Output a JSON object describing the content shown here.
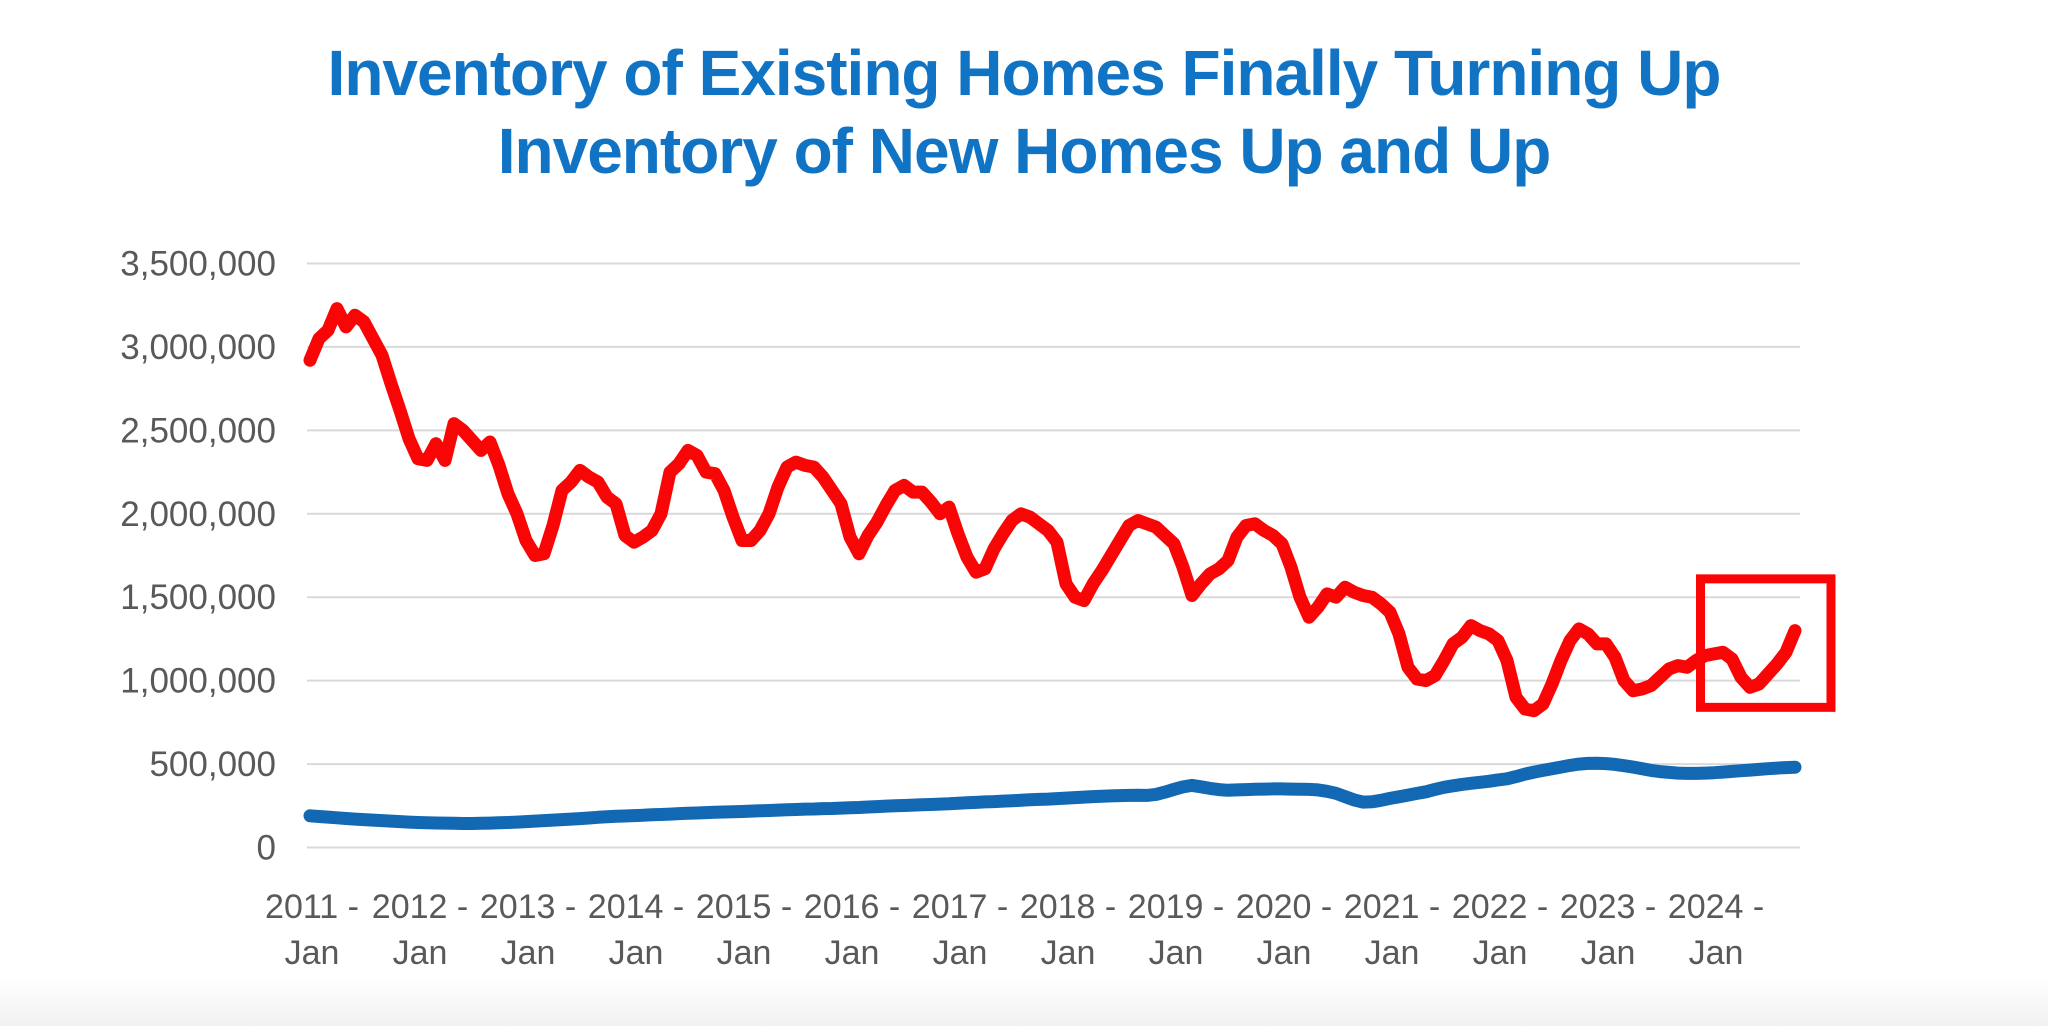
{
  "title": {
    "line1": "Inventory of Existing Homes Finally Turning Up",
    "line2": "Inventory of New Homes Up and Up",
    "color": "#1173c4"
  },
  "chart_data": {
    "type": "line",
    "title": "Inventory of Existing Homes Finally Turning Up / Inventory of New Homes Up and Up",
    "x_axis": {
      "start": "2011-01",
      "frequency": "monthly",
      "points": 166,
      "tick_years": [
        "2011",
        "2012",
        "2013",
        "2014",
        "2015",
        "2016",
        "2017",
        "2018",
        "2019",
        "2020",
        "2021",
        "2022",
        "2023",
        "2024"
      ],
      "tick_month_label": "Jan",
      "year_suffix": " -"
    },
    "y_axis": {
      "min": 0,
      "max": 3500000,
      "tick_step": 500000,
      "tick_labels": [
        "0",
        "500,000",
        "1,000,000",
        "1,500,000",
        "2,000,000",
        "2,500,000",
        "3,000,000",
        "3,500,000"
      ],
      "label_color": "#595959"
    },
    "grid": {
      "show": true,
      "color": "#d9d9d9",
      "horizontal_only": true
    },
    "legend": "none",
    "series": [
      {
        "name": "existing-homes-inventory",
        "color": "#f90505",
        "stroke_width": 13,
        "unit": "homes",
        "values": [
          2920000,
          3050000,
          3100000,
          3230000,
          3120000,
          3190000,
          3150000,
          3050000,
          2950000,
          2780000,
          2620000,
          2450000,
          2330000,
          2320000,
          2420000,
          2320000,
          2540000,
          2500000,
          2440000,
          2380000,
          2430000,
          2290000,
          2120000,
          2000000,
          1840000,
          1750000,
          1760000,
          1930000,
          2140000,
          2190000,
          2260000,
          2220000,
          2190000,
          2100000,
          2060000,
          1870000,
          1830000,
          1860000,
          1900000,
          2000000,
          2250000,
          2300000,
          2380000,
          2350000,
          2250000,
          2240000,
          2140000,
          1980000,
          1840000,
          1840000,
          1900000,
          2000000,
          2160000,
          2280000,
          2310000,
          2290000,
          2280000,
          2220000,
          2140000,
          2060000,
          1860000,
          1760000,
          1870000,
          1950000,
          2050000,
          2140000,
          2170000,
          2130000,
          2130000,
          2070000,
          2000000,
          2040000,
          1880000,
          1740000,
          1650000,
          1670000,
          1790000,
          1880000,
          1960000,
          2000000,
          1980000,
          1940000,
          1900000,
          1830000,
          1580000,
          1500000,
          1480000,
          1580000,
          1660000,
          1750000,
          1840000,
          1930000,
          1960000,
          1940000,
          1920000,
          1870000,
          1820000,
          1680000,
          1510000,
          1580000,
          1640000,
          1670000,
          1720000,
          1860000,
          1930000,
          1940000,
          1900000,
          1870000,
          1820000,
          1680000,
          1500000,
          1380000,
          1440000,
          1520000,
          1500000,
          1560000,
          1530000,
          1510000,
          1500000,
          1460000,
          1410000,
          1280000,
          1080000,
          1010000,
          1000000,
          1030000,
          1120000,
          1220000,
          1260000,
          1330000,
          1300000,
          1280000,
          1240000,
          1120000,
          900000,
          830000,
          820000,
          860000,
          980000,
          1120000,
          1240000,
          1310000,
          1280000,
          1220000,
          1220000,
          1140000,
          1000000,
          940000,
          950000,
          970000,
          1020000,
          1070000,
          1090000,
          1080000,
          1120000,
          1150000,
          1160000,
          1170000,
          1130000,
          1020000,
          960000,
          980000,
          1040000,
          1100000,
          1170000,
          1300000
        ]
      },
      {
        "name": "new-homes-inventory",
        "color": "#1268b2",
        "stroke_width": 13,
        "unit": "homes",
        "values": [
          190000,
          186000,
          182000,
          178000,
          174000,
          170000,
          167000,
          164000,
          161000,
          158000,
          155000,
          152000,
          150000,
          148000,
          147000,
          146000,
          145000,
          144000,
          144000,
          145000,
          146000,
          148000,
          150000,
          152000,
          155000,
          158000,
          161000,
          164000,
          167000,
          170000,
          173000,
          177000,
          181000,
          184000,
          187000,
          189000,
          191000,
          193000,
          196000,
          198000,
          200000,
          203000,
          205000,
          207000,
          209000,
          211000,
          213000,
          214000,
          216000,
          218000,
          220000,
          222000,
          224000,
          226000,
          228000,
          230000,
          231000,
          233000,
          234000,
          236000,
          238000,
          240000,
          243000,
          245000,
          248000,
          250000,
          252000,
          254000,
          256000,
          258000,
          260000,
          262000,
          265000,
          268000,
          270000,
          273000,
          275000,
          278000,
          280000,
          283000,
          286000,
          288000,
          290000,
          293000,
          296000,
          299000,
          302000,
          305000,
          307000,
          309000,
          311000,
          312000,
          313000,
          312000,
          318000,
          332000,
          348000,
          363000,
          372000,
          364000,
          354000,
          347000,
          343000,
          345000,
          347000,
          349000,
          350000,
          351000,
          351000,
          350000,
          349000,
          348000,
          345000,
          337000,
          325000,
          305000,
          285000,
          272000,
          274000,
          283000,
          294000,
          304000,
          314000,
          324000,
          334000,
          348000,
          361000,
          370000,
          378000,
          385000,
          391000,
          397000,
          405000,
          412000,
          425000,
          440000,
          452000,
          462000,
          472000,
          482000,
          492000,
          500000,
          504000,
          505000,
          503000,
          498000,
          490000,
          482000,
          472000,
          462000,
          455000,
          450000,
          446000,
          444000,
          444000,
          446000,
          448000,
          452000,
          456000,
          460000,
          464000,
          468000,
          472000,
          476000,
          479000,
          481000
        ]
      }
    ],
    "annotations": [
      {
        "type": "box",
        "name": "recent-upturn-highlight",
        "color": "#f90505",
        "stroke_width": 9,
        "month_range": [
          154.5,
          169
        ],
        "value_range": [
          840000,
          1610000
        ]
      }
    ]
  }
}
